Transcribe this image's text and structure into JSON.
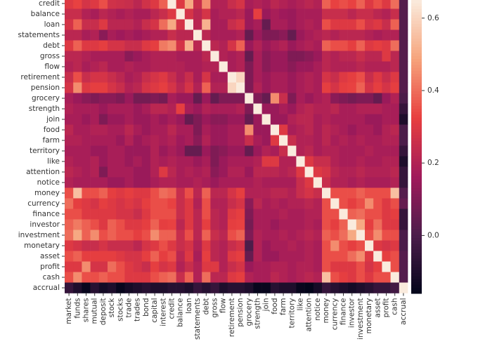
{
  "chart_data": {
    "type": "heatmap",
    "colormap": "rocket",
    "x_categories": [
      "market",
      "funds",
      "shares",
      "mutual",
      "deposit",
      "stock",
      "stocks",
      "trade",
      "trades",
      "bond",
      "capital",
      "interest",
      "credit",
      "balance",
      "loan",
      "statements",
      "debt",
      "gross",
      "flow",
      "retirement",
      "pension",
      "grocery",
      "strength",
      "join",
      "food",
      "farm",
      "territory",
      "like",
      "attention",
      "notice",
      "money",
      "currency",
      "finance",
      "investor",
      "investment",
      "monetary",
      "asset",
      "profit",
      "cash",
      "accrual"
    ],
    "y_categories": [
      "credit",
      "balance",
      "loan",
      "statements",
      "debt",
      "gross",
      "flow",
      "retirement",
      "pension",
      "grocery",
      "strength",
      "join",
      "food",
      "farm",
      "territory",
      "like",
      "attention",
      "notice",
      "money",
      "currency",
      "finance",
      "investor",
      "investment",
      "monetary",
      "asset",
      "profit",
      "cash",
      "accrual"
    ],
    "values": [
      [
        0.3,
        0.33,
        0.28,
        0.3,
        0.35,
        0.27,
        0.26,
        0.25,
        0.22,
        0.27,
        0.3,
        0.38,
        1,
        0.3,
        0.5,
        0.25,
        0.45,
        0.2,
        0.2,
        0.25,
        0.28,
        0.18,
        0.2,
        0.18,
        0.22,
        0.2,
        0.18,
        0.2,
        0.22,
        0.2,
        0.38,
        0.33,
        0.35,
        0.33,
        0.38,
        0.3,
        0.35,
        0.3,
        0.4,
        0.02
      ],
      [
        0.25,
        0.25,
        0.2,
        0.18,
        0.22,
        0.2,
        0.18,
        0.2,
        0.18,
        0.18,
        0.22,
        0.25,
        0.3,
        1,
        0.28,
        0.22,
        0.28,
        0.18,
        0.2,
        0.2,
        0.22,
        0.15,
        0.32,
        0.15,
        0.18,
        0.16,
        0.15,
        0.18,
        0.18,
        0.18,
        0.25,
        0.25,
        0.25,
        0.22,
        0.25,
        0.25,
        0.22,
        0.2,
        0.25,
        0.02
      ],
      [
        0.28,
        0.38,
        0.25,
        0.25,
        0.3,
        0.22,
        0.22,
        0.22,
        0.2,
        0.25,
        0.28,
        0.4,
        0.5,
        0.28,
        1,
        0.22,
        0.52,
        0.18,
        0.18,
        0.25,
        0.28,
        0.15,
        0.18,
        0.05,
        0.18,
        0.18,
        0.15,
        0.18,
        0.2,
        0.18,
        0.35,
        0.3,
        0.3,
        0.3,
        0.35,
        0.28,
        0.3,
        0.25,
        0.38,
        0.02
      ],
      [
        0.22,
        0.22,
        0.18,
        0.2,
        0.12,
        0.18,
        0.16,
        0.18,
        0.16,
        0.18,
        0.2,
        0.2,
        0.25,
        0.22,
        0.22,
        1,
        0.22,
        0.18,
        0.18,
        0.18,
        0.2,
        0.05,
        0.15,
        0.1,
        0.1,
        0.12,
        0.05,
        0.15,
        0.18,
        0.2,
        0.22,
        0.2,
        0.22,
        0.22,
        0.22,
        0.2,
        0.18,
        0.2,
        0.2,
        0.02
      ],
      [
        0.3,
        0.38,
        0.3,
        0.3,
        0.32,
        0.28,
        0.28,
        0.25,
        0.25,
        0.3,
        0.32,
        0.42,
        0.45,
        0.28,
        0.52,
        0.22,
        1,
        0.22,
        0.2,
        0.28,
        0.38,
        0.15,
        0.2,
        0.15,
        0.18,
        0.2,
        0.15,
        0.18,
        0.2,
        0.18,
        0.38,
        0.35,
        0.35,
        0.32,
        0.38,
        0.3,
        0.32,
        0.3,
        0.4,
        0.02
      ],
      [
        0.22,
        0.22,
        0.2,
        0.18,
        0.18,
        0.18,
        0.18,
        0.12,
        0.15,
        0.18,
        0.2,
        0.2,
        0.2,
        0.18,
        0.18,
        0.18,
        0.22,
        1,
        0.2,
        0.18,
        0.2,
        0.05,
        0.18,
        0.12,
        0.15,
        0.15,
        0.1,
        0.1,
        0.12,
        0.15,
        0.22,
        0.2,
        0.22,
        0.22,
        0.25,
        0.22,
        0.22,
        0.3,
        0.22,
        0.02
      ],
      [
        0.2,
        0.22,
        0.18,
        0.2,
        0.22,
        0.18,
        0.18,
        0.2,
        0.18,
        0.18,
        0.2,
        0.2,
        0.2,
        0.2,
        0.18,
        0.18,
        0.2,
        0.2,
        1,
        0.18,
        0.2,
        0.1,
        0.18,
        0.12,
        0.15,
        0.15,
        0.12,
        0.15,
        0.15,
        0.18,
        0.22,
        0.2,
        0.2,
        0.2,
        0.22,
        0.2,
        0.2,
        0.2,
        0.22,
        0.02
      ],
      [
        0.25,
        0.35,
        0.25,
        0.28,
        0.28,
        0.25,
        0.22,
        0.18,
        0.2,
        0.25,
        0.28,
        0.3,
        0.25,
        0.2,
        0.25,
        0.18,
        0.28,
        0.18,
        0.18,
        1,
        0.6,
        0.1,
        0.18,
        0.15,
        0.18,
        0.18,
        0.15,
        0.18,
        0.2,
        0.18,
        0.28,
        0.25,
        0.3,
        0.32,
        0.35,
        0.25,
        0.3,
        0.25,
        0.3,
        0.02
      ],
      [
        0.28,
        0.45,
        0.3,
        0.32,
        0.32,
        0.28,
        0.25,
        0.2,
        0.22,
        0.28,
        0.3,
        0.32,
        0.28,
        0.22,
        0.28,
        0.2,
        0.38,
        0.2,
        0.2,
        0.6,
        1,
        0.1,
        0.2,
        0.15,
        0.18,
        0.18,
        0.15,
        0.18,
        0.2,
        0.18,
        0.32,
        0.28,
        0.32,
        0.33,
        0.38,
        0.28,
        0.32,
        0.28,
        0.32,
        0.02
      ],
      [
        0.18,
        0.15,
        0.12,
        0.1,
        0.12,
        0.12,
        0.1,
        0.15,
        0.08,
        0.08,
        0.1,
        0.08,
        0.18,
        0.15,
        0.15,
        0.05,
        0.15,
        0.05,
        0.1,
        0.1,
        0.1,
        1,
        0.1,
        0.05,
        0.45,
        0.25,
        0.1,
        0.18,
        0.15,
        0.18,
        0.2,
        0.12,
        0.1,
        0.08,
        0.1,
        0.1,
        0.05,
        0.15,
        0.2,
        0.0
      ],
      [
        0.2,
        0.18,
        0.18,
        0.18,
        0.15,
        0.18,
        0.18,
        0.18,
        0.15,
        0.18,
        0.22,
        0.22,
        0.2,
        0.32,
        0.18,
        0.15,
        0.2,
        0.18,
        0.18,
        0.18,
        0.2,
        0.1,
        1,
        0.15,
        0.15,
        0.18,
        0.15,
        0.2,
        0.22,
        0.2,
        0.2,
        0.22,
        0.18,
        0.18,
        0.2,
        0.2,
        0.2,
        0.18,
        0.18,
        -0.05
      ],
      [
        0.18,
        0.18,
        0.15,
        0.18,
        0.1,
        0.15,
        0.15,
        0.18,
        0.15,
        0.15,
        0.18,
        0.15,
        0.18,
        0.15,
        0.05,
        0.1,
        0.15,
        0.12,
        0.12,
        0.15,
        0.15,
        0.05,
        0.15,
        1,
        0.15,
        0.15,
        0.2,
        0.22,
        0.22,
        0.18,
        0.2,
        0.18,
        0.18,
        0.18,
        0.18,
        0.15,
        0.15,
        0.18,
        0.18,
        -0.1
      ],
      [
        0.22,
        0.18,
        0.18,
        0.2,
        0.2,
        0.18,
        0.18,
        0.22,
        0.18,
        0.15,
        0.18,
        0.18,
        0.22,
        0.18,
        0.18,
        0.1,
        0.18,
        0.15,
        0.15,
        0.18,
        0.18,
        0.45,
        0.15,
        0.15,
        1,
        0.3,
        0.18,
        0.2,
        0.22,
        0.18,
        0.22,
        0.2,
        0.18,
        0.15,
        0.18,
        0.18,
        0.15,
        0.2,
        0.22,
        0.0
      ],
      [
        0.2,
        0.2,
        0.18,
        0.18,
        0.18,
        0.18,
        0.15,
        0.2,
        0.15,
        0.18,
        0.2,
        0.18,
        0.2,
        0.16,
        0.18,
        0.12,
        0.2,
        0.15,
        0.15,
        0.18,
        0.18,
        0.25,
        0.18,
        0.15,
        0.3,
        1,
        0.25,
        0.2,
        0.2,
        0.18,
        0.22,
        0.18,
        0.2,
        0.18,
        0.2,
        0.18,
        0.18,
        0.2,
        0.2,
        0.0
      ],
      [
        0.18,
        0.18,
        0.18,
        0.15,
        0.15,
        0.18,
        0.18,
        0.15,
        0.15,
        0.15,
        0.2,
        0.15,
        0.18,
        0.15,
        0.05,
        0.05,
        0.15,
        0.1,
        0.12,
        0.15,
        0.15,
        0.05,
        0.15,
        0.2,
        0.18,
        0.25,
        1,
        0.2,
        0.22,
        0.18,
        0.2,
        0.2,
        0.18,
        0.18,
        0.18,
        0.2,
        0.18,
        0.18,
        0.18,
        -0.05
      ],
      [
        0.2,
        0.18,
        0.18,
        0.2,
        0.15,
        0.18,
        0.18,
        0.15,
        0.18,
        0.15,
        0.2,
        0.18,
        0.2,
        0.18,
        0.18,
        0.15,
        0.18,
        0.1,
        0.15,
        0.18,
        0.18,
        0.18,
        0.2,
        0.3,
        0.3,
        0.2,
        0.2,
        1,
        0.3,
        0.25,
        0.25,
        0.2,
        0.18,
        0.18,
        0.2,
        0.18,
        0.18,
        0.2,
        0.2,
        -0.1
      ],
      [
        0.22,
        0.2,
        0.18,
        0.2,
        0.1,
        0.18,
        0.18,
        0.18,
        0.15,
        0.15,
        0.2,
        0.3,
        0.22,
        0.18,
        0.2,
        0.18,
        0.2,
        0.12,
        0.15,
        0.2,
        0.2,
        0.15,
        0.22,
        0.22,
        0.22,
        0.2,
        0.22,
        0.3,
        1,
        0.3,
        0.28,
        0.22,
        0.2,
        0.2,
        0.22,
        0.2,
        0.2,
        0.2,
        0.22,
        -0.05
      ],
      [
        0.2,
        0.18,
        0.18,
        0.18,
        0.18,
        0.15,
        0.15,
        0.18,
        0.15,
        0.15,
        0.18,
        0.2,
        0.2,
        0.18,
        0.18,
        0.2,
        0.18,
        0.15,
        0.18,
        0.18,
        0.18,
        0.18,
        0.2,
        0.18,
        0.18,
        0.18,
        0.18,
        0.25,
        0.3,
        1,
        0.25,
        0.2,
        0.2,
        0.18,
        0.2,
        0.18,
        0.18,
        0.18,
        0.2,
        -0.05
      ],
      [
        0.35,
        0.55,
        0.35,
        0.35,
        0.38,
        0.32,
        0.3,
        0.32,
        0.3,
        0.3,
        0.35,
        0.4,
        0.38,
        0.25,
        0.35,
        0.22,
        0.38,
        0.22,
        0.22,
        0.28,
        0.32,
        0.2,
        0.2,
        0.2,
        0.22,
        0.22,
        0.2,
        0.25,
        0.28,
        0.25,
        1,
        0.35,
        0.35,
        0.35,
        0.38,
        0.35,
        0.35,
        0.35,
        0.55,
        0.02
      ],
      [
        0.4,
        0.32,
        0.3,
        0.28,
        0.32,
        0.3,
        0.28,
        0.3,
        0.28,
        0.32,
        0.35,
        0.35,
        0.33,
        0.25,
        0.3,
        0.2,
        0.35,
        0.2,
        0.2,
        0.25,
        0.28,
        0.12,
        0.22,
        0.18,
        0.2,
        0.18,
        0.2,
        0.2,
        0.22,
        0.2,
        0.35,
        1,
        0.35,
        0.32,
        0.35,
        0.45,
        0.35,
        0.3,
        0.35,
        0.05
      ],
      [
        0.35,
        0.35,
        0.3,
        0.3,
        0.3,
        0.3,
        0.28,
        0.28,
        0.25,
        0.3,
        0.35,
        0.35,
        0.35,
        0.25,
        0.3,
        0.22,
        0.35,
        0.22,
        0.2,
        0.3,
        0.32,
        0.1,
        0.18,
        0.18,
        0.18,
        0.2,
        0.18,
        0.18,
        0.2,
        0.2,
        0.35,
        0.35,
        1,
        0.38,
        0.4,
        0.35,
        0.35,
        0.3,
        0.32,
        -0.05
      ],
      [
        0.38,
        0.42,
        0.38,
        0.35,
        0.3,
        0.38,
        0.35,
        0.3,
        0.3,
        0.32,
        0.38,
        0.32,
        0.33,
        0.22,
        0.3,
        0.22,
        0.32,
        0.22,
        0.2,
        0.32,
        0.33,
        0.08,
        0.18,
        0.18,
        0.15,
        0.18,
        0.18,
        0.18,
        0.2,
        0.18,
        0.35,
        0.32,
        0.38,
        1,
        0.5,
        0.32,
        0.4,
        0.3,
        0.3,
        -0.05
      ],
      [
        0.4,
        0.5,
        0.38,
        0.45,
        0.35,
        0.38,
        0.35,
        0.35,
        0.32,
        0.35,
        0.45,
        0.38,
        0.38,
        0.25,
        0.35,
        0.22,
        0.38,
        0.25,
        0.22,
        0.35,
        0.38,
        0.1,
        0.2,
        0.18,
        0.18,
        0.2,
        0.18,
        0.2,
        0.22,
        0.2,
        0.38,
        0.35,
        0.4,
        0.5,
        1,
        0.35,
        0.45,
        0.35,
        0.35,
        0.0
      ],
      [
        0.3,
        0.28,
        0.25,
        0.25,
        0.28,
        0.25,
        0.25,
        0.25,
        0.22,
        0.28,
        0.3,
        0.35,
        0.3,
        0.25,
        0.28,
        0.2,
        0.3,
        0.22,
        0.2,
        0.25,
        0.28,
        0.0,
        0.2,
        0.15,
        0.18,
        0.18,
        0.2,
        0.18,
        0.2,
        0.18,
        0.35,
        0.45,
        0.35,
        0.32,
        0.35,
        1,
        0.3,
        0.28,
        0.3,
        0.0
      ],
      [
        0.35,
        0.38,
        0.32,
        0.32,
        0.32,
        0.32,
        0.3,
        0.28,
        0.28,
        0.32,
        0.38,
        0.32,
        0.35,
        0.22,
        0.3,
        0.18,
        0.32,
        0.22,
        0.2,
        0.3,
        0.32,
        0.05,
        0.2,
        0.15,
        0.15,
        0.18,
        0.18,
        0.18,
        0.2,
        0.18,
        0.35,
        0.35,
        0.35,
        0.4,
        0.45,
        0.3,
        1,
        0.32,
        0.35,
        0.02
      ],
      [
        0.3,
        0.3,
        0.45,
        0.28,
        0.28,
        0.4,
        0.35,
        0.3,
        0.28,
        0.25,
        0.32,
        0.28,
        0.3,
        0.2,
        0.25,
        0.2,
        0.3,
        0.3,
        0.2,
        0.25,
        0.28,
        0.15,
        0.18,
        0.18,
        0.2,
        0.2,
        0.18,
        0.2,
        0.2,
        0.18,
        0.35,
        0.3,
        0.3,
        0.3,
        0.35,
        0.28,
        0.32,
        1,
        0.35,
        0.02
      ],
      [
        0.35,
        0.45,
        0.35,
        0.35,
        0.38,
        0.35,
        0.35,
        0.3,
        0.3,
        0.3,
        0.35,
        0.38,
        0.4,
        0.25,
        0.38,
        0.2,
        0.4,
        0.22,
        0.22,
        0.3,
        0.32,
        0.2,
        0.18,
        0.18,
        0.22,
        0.2,
        0.18,
        0.2,
        0.22,
        0.2,
        0.55,
        0.35,
        0.32,
        0.3,
        0.35,
        0.3,
        0.35,
        0.35,
        1,
        0.02
      ],
      [
        -0.05,
        -0.1,
        -0.15,
        -0.08,
        -0.12,
        -0.1,
        -0.15,
        -0.12,
        -0.1,
        -0.08,
        -0.1,
        -0.1,
        -0.08,
        -0.08,
        -0.1,
        -0.05,
        -0.08,
        -0.05,
        -0.1,
        -0.08,
        -0.08,
        -0.1,
        -0.15,
        -0.15,
        -0.08,
        -0.1,
        -0.1,
        -0.15,
        -0.16,
        -0.12,
        -0.05,
        -0.08,
        -0.1,
        -0.12,
        -0.1,
        -0.08,
        -0.05,
        -0.05,
        -0.02,
        1
      ]
    ],
    "vlim": [
      -0.16,
      0.65
    ],
    "cticks": [
      {
        "value": 0,
        "label": "0.0"
      },
      0.2,
      0.4,
      0.6
    ]
  }
}
